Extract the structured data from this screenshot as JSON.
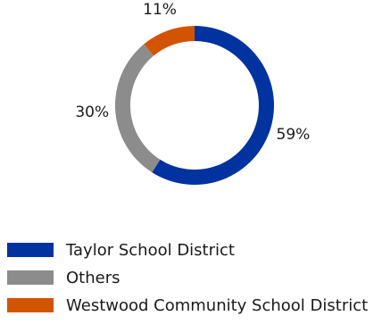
{
  "chart_data": {
    "type": "pie",
    "style": "donut",
    "categories": [
      "Taylor School District",
      "Others",
      "Westwood Community School District"
    ],
    "values": [
      59,
      30,
      11
    ],
    "value_labels": [
      "59%",
      "30%",
      "11%"
    ],
    "colors": [
      "#0033a0",
      "#8c8c8c",
      "#d35400"
    ],
    "title": "",
    "legend_position": "bottom-left"
  },
  "legend": {
    "items": [
      {
        "label": "Taylor School District",
        "color": "#0033a0"
      },
      {
        "label": "Others",
        "color": "#8c8c8c"
      },
      {
        "label": "Westwood Community School District",
        "color": "#d35400"
      }
    ]
  }
}
